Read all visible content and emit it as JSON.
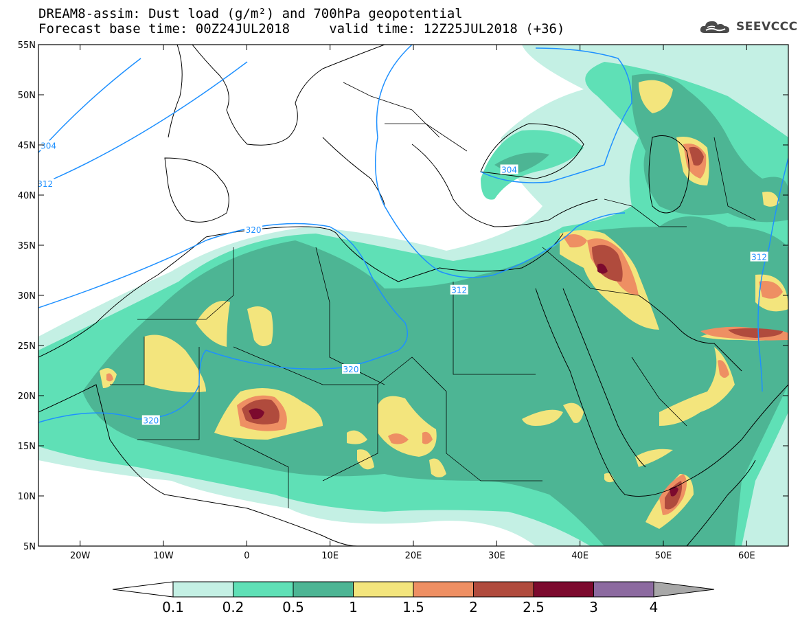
{
  "title": {
    "line1": "DREAM8-assim: Dust load (g/m²) and 700hPa geopotential",
    "line2": "Forecast base time: 00Z24JUL2018     valid time: 12Z25JUL2018 (+36)"
  },
  "logo": {
    "text": "SEEVCCC",
    "icon": "cloud-icon"
  },
  "map": {
    "lon_range": [
      -25,
      65
    ],
    "lat_range": [
      5,
      55
    ],
    "lon_ticks": [
      {
        "value": -20,
        "label": "20W"
      },
      {
        "value": -10,
        "label": "10W"
      },
      {
        "value": 0,
        "label": "0"
      },
      {
        "value": 10,
        "label": "10E"
      },
      {
        "value": 20,
        "label": "20E"
      },
      {
        "value": 30,
        "label": "30E"
      },
      {
        "value": 40,
        "label": "40E"
      },
      {
        "value": 50,
        "label": "50E"
      },
      {
        "value": 60,
        "label": "60E"
      }
    ],
    "lat_ticks": [
      {
        "value": 55,
        "label": "55N"
      },
      {
        "value": 50,
        "label": "50N"
      },
      {
        "value": 45,
        "label": "45N"
      },
      {
        "value": 40,
        "label": "40N"
      },
      {
        "value": 35,
        "label": "35N"
      },
      {
        "value": 30,
        "label": "30N"
      },
      {
        "value": 25,
        "label": "25N"
      },
      {
        "value": 20,
        "label": "20N"
      },
      {
        "value": 15,
        "label": "15N"
      },
      {
        "value": 10,
        "label": "10N"
      },
      {
        "value": 5,
        "label": "5N"
      }
    ],
    "contour_labels": [
      {
        "text": "304",
        "lon": -23.8,
        "lat": 44.9
      },
      {
        "text": "312",
        "lon": -24.2,
        "lat": 41.1
      },
      {
        "text": "304",
        "lon": 31.5,
        "lat": 42.5
      },
      {
        "text": "320",
        "lon": 0.8,
        "lat": 36.5
      },
      {
        "text": "312",
        "lon": 25.5,
        "lat": 30.5
      },
      {
        "text": "320",
        "lon": 12.5,
        "lat": 22.6
      },
      {
        "text": "320",
        "lon": -11.5,
        "lat": 17.5
      },
      {
        "text": "312",
        "lon": 61.5,
        "lat": 33.8
      }
    ]
  },
  "colorbar": {
    "levels": [
      "0.1",
      "0.2",
      "0.5",
      "1",
      "1.5",
      "2",
      "2.5",
      "3",
      "4"
    ],
    "colors": [
      "#c4f0e4",
      "#5fe0b6",
      "#4db594",
      "#f3e57d",
      "#ee8f63",
      "#b04b3d",
      "#7c0a2e",
      "#8c6aa0"
    ],
    "under_color": "#ffffff",
    "over_color": "#a8a8a8"
  },
  "colors": {
    "contour": "#1e90ff",
    "coast": "#000000"
  }
}
